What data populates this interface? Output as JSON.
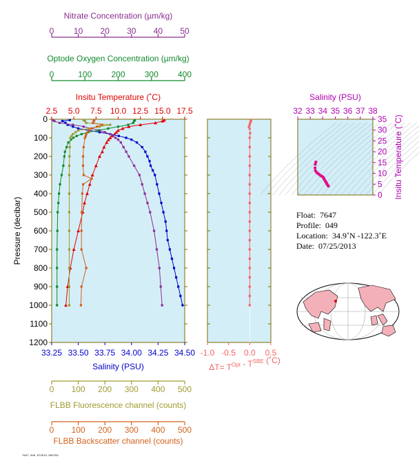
{
  "colors": {
    "nitrate": "#8B2C8F",
    "oxygen": "#108A2C",
    "temperature": "#E00000",
    "salinity": "#0000C8",
    "fluorescence": "#A09A30",
    "backscatter": "#D2601A",
    "delta_t": "#F06464",
    "inset_salinity": "#B000B0",
    "inset_points": "#E0108A",
    "axis_frame": "#7A6A00",
    "panel_bg": "#D4EEF8",
    "land": "#F4B0B8"
  },
  "info": {
    "float_label": "Float:",
    "float_value": "7647",
    "profile_label": "Profile:",
    "profile_value": "049",
    "location_label": "Location:",
    "location_value": "34.9˚N  -122.3˚E",
    "date_label": "Date:",
    "date_value": "07/25/2013"
  },
  "stamp_text": "7647 049 072513 083702",
  "chart_data": [
    {
      "type": "line",
      "panel": "main_profile",
      "ylabel": "Pressure (decibar)",
      "y_ticks": [
        0,
        100,
        200,
        300,
        400,
        500,
        600,
        700,
        800,
        900,
        1000,
        1100,
        1200
      ],
      "ylim": [
        1200,
        0
      ],
      "axes": {
        "nitrate": {
          "label": "Nitrate Concentration (µm/kg)",
          "ticks": [
            0,
            10,
            20,
            30,
            40,
            50
          ],
          "lim": [
            0,
            50
          ]
        },
        "oxygen": {
          "label": "Optode Oxygen Concentration (µm/kg)",
          "ticks": [
            0,
            100,
            200,
            300,
            400
          ],
          "lim": [
            0,
            400
          ]
        },
        "temperature": {
          "label": "Insitu Temperature (˚C)",
          "ticks": [
            "2.5",
            "5.0",
            "7.5",
            "10.0",
            "12.5",
            "15.0",
            "17.5"
          ],
          "lim": [
            2.5,
            17.5
          ]
        },
        "salinity": {
          "label": "Salinity (PSU)",
          "ticks": [
            "33.25",
            "33.50",
            "33.75",
            "34.00",
            "34.25",
            "34.50"
          ],
          "lim": [
            33.25,
            34.5
          ]
        },
        "fluorescence": {
          "label": "FLBB Fluorescence channel (counts)",
          "ticks": [
            0,
            100,
            200,
            300,
            400,
            500
          ],
          "lim": [
            0,
            500
          ]
        },
        "backscatter": {
          "label": "FLBB Backscatter channel (counts)",
          "ticks": [
            0,
            100,
            200,
            300,
            400,
            500
          ],
          "lim": [
            0,
            500
          ]
        }
      },
      "series": [
        {
          "name": "temperature",
          "axis": "temperature",
          "pressure": [
            5,
            10,
            20,
            30,
            40,
            50,
            60,
            70,
            80,
            90,
            100,
            110,
            125,
            150,
            175,
            200,
            250,
            300,
            350,
            400,
            450,
            500,
            600,
            700,
            800,
            900,
            1000
          ],
          "values": [
            15.2,
            15.0,
            14.2,
            12.5,
            11.2,
            10.5,
            10.0,
            9.8,
            9.6,
            9.3,
            9.1,
            8.9,
            8.7,
            8.4,
            8.2,
            7.9,
            7.5,
            7.1,
            6.8,
            6.5,
            6.2,
            6.0,
            5.5,
            5.0,
            4.6,
            4.3,
            4.1
          ]
        },
        {
          "name": "salinity",
          "axis": "salinity",
          "pressure": [
            5,
            10,
            20,
            30,
            40,
            50,
            60,
            70,
            80,
            90,
            100,
            110,
            125,
            150,
            175,
            200,
            225,
            250,
            275,
            300,
            350,
            400,
            450,
            500,
            550,
            600,
            650,
            700,
            750,
            800,
            850,
            900,
            950,
            1000
          ],
          "values": [
            33.42,
            33.35,
            33.38,
            33.4,
            33.45,
            33.5,
            33.6,
            33.7,
            33.8,
            33.88,
            33.95,
            34.0,
            34.05,
            34.1,
            34.13,
            34.15,
            34.17,
            34.18,
            34.2,
            34.22,
            34.24,
            34.26,
            34.28,
            34.3,
            34.32,
            34.33,
            34.34,
            34.36,
            34.38,
            34.4,
            34.42,
            34.44,
            34.46,
            34.48
          ]
        },
        {
          "name": "nitrate",
          "axis": "nitrate",
          "pressure": [
            5,
            10,
            20,
            30,
            40,
            50,
            60,
            70,
            80,
            90,
            100,
            110,
            125,
            150,
            175,
            200,
            250,
            300,
            350,
            400,
            450,
            500,
            600,
            700,
            800,
            900,
            1000
          ],
          "values": [
            0.5,
            1.0,
            3.0,
            8.0,
            12.0,
            15.0,
            18.0,
            20.0,
            22.0,
            23.0,
            24.0,
            25.0,
            26.0,
            27.0,
            28.0,
            29.0,
            31.0,
            33.0,
            34.0,
            35.0,
            36.0,
            37.0,
            38.5,
            39.5,
            40.5,
            41.0,
            41.5
          ]
        },
        {
          "name": "oxygen",
          "axis": "oxygen",
          "pressure": [
            5,
            10,
            20,
            30,
            40,
            50,
            60,
            70,
            80,
            90,
            100,
            110,
            125,
            150,
            175,
            200,
            250,
            300,
            350,
            400,
            450,
            500,
            600,
            700,
            800,
            900,
            1000
          ],
          "values": [
            250,
            248,
            245,
            230,
            200,
            170,
            140,
            110,
            90,
            75,
            65,
            58,
            50,
            45,
            40,
            38,
            35,
            30,
            25,
            22,
            20,
            18,
            17,
            16,
            16,
            16,
            16
          ]
        },
        {
          "name": "fluorescence",
          "axis": "fluorescence",
          "pressure": [
            5,
            10,
            20,
            30,
            40,
            50,
            60,
            70,
            80,
            90,
            100,
            150,
            200,
            250,
            300,
            400,
            500,
            600,
            700,
            800,
            900,
            1000
          ],
          "values": [
            120,
            125,
            130,
            220,
            180,
            140,
            100,
            90,
            80,
            75,
            70,
            68,
            67,
            66,
            66,
            66,
            66,
            66,
            66,
            66,
            66,
            66
          ]
        },
        {
          "name": "backscatter",
          "axis": "backscatter",
          "pressure": [
            5,
            10,
            20,
            30,
            40,
            50,
            60,
            70,
            80,
            90,
            100,
            150,
            200,
            250,
            300,
            320,
            350,
            400,
            500,
            600,
            700,
            800,
            900,
            1000
          ],
          "values": [
            160,
            158,
            155,
            190,
            170,
            150,
            140,
            135,
            130,
            128,
            125,
            120,
            118,
            118,
            120,
            150,
            118,
            115,
            113,
            112,
            112,
            130,
            112,
            110
          ]
        }
      ]
    },
    {
      "type": "line",
      "panel": "delta_t",
      "xlabel_prefix": "ΔT= T",
      "xlabel_sup1": "Opt",
      "xlabel_mid": " - T",
      "xlabel_sup2": "SBE",
      "xlabel_suffix": " (˚C)",
      "x_ticks": [
        "-1.0",
        "-0.5",
        "0.0",
        "0.5"
      ],
      "xlim": [
        -1.0,
        0.5
      ],
      "pressure": [
        5,
        10,
        20,
        30,
        40,
        50,
        75,
        100,
        150,
        200,
        250,
        300,
        350,
        400,
        450,
        500,
        550,
        600,
        650,
        700,
        750,
        800,
        850,
        900,
        950,
        1000
      ],
      "values": [
        0.02,
        0.03,
        0.01,
        0.0,
        -0.02,
        0.0,
        0.01,
        0.0,
        0.0,
        0.0,
        0.0,
        0.0,
        0.0,
        0.0,
        0.0,
        0.0,
        0.0,
        0.0,
        0.0,
        0.0,
        0.0,
        0.0,
        0.0,
        0.0,
        0.0,
        0.0
      ]
    },
    {
      "type": "scatter",
      "panel": "ts_inset",
      "title": "Salinity (PSU)",
      "ylabel": "Insitu Temperature (˚C)",
      "x_ticks": [
        32,
        33,
        34,
        35,
        36,
        37,
        38
      ],
      "y_ticks": [
        0,
        5,
        10,
        15,
        20,
        25,
        30,
        35
      ],
      "xlim": [
        32,
        38
      ],
      "ylim": [
        0,
        35
      ],
      "salinity": [
        33.45,
        33.4,
        33.38,
        33.42,
        33.5,
        33.6,
        33.7,
        33.8,
        33.9,
        34.0,
        34.05,
        34.1,
        34.15,
        34.2,
        34.25,
        34.3,
        34.35,
        34.4,
        34.45
      ],
      "temperature": [
        15.2,
        14.2,
        12.5,
        11.2,
        10.5,
        10.0,
        9.6,
        9.1,
        8.7,
        8.4,
        8.0,
        7.5,
        7.0,
        6.5,
        6.0,
        5.5,
        5.0,
        4.5,
        4.1
      ]
    }
  ]
}
